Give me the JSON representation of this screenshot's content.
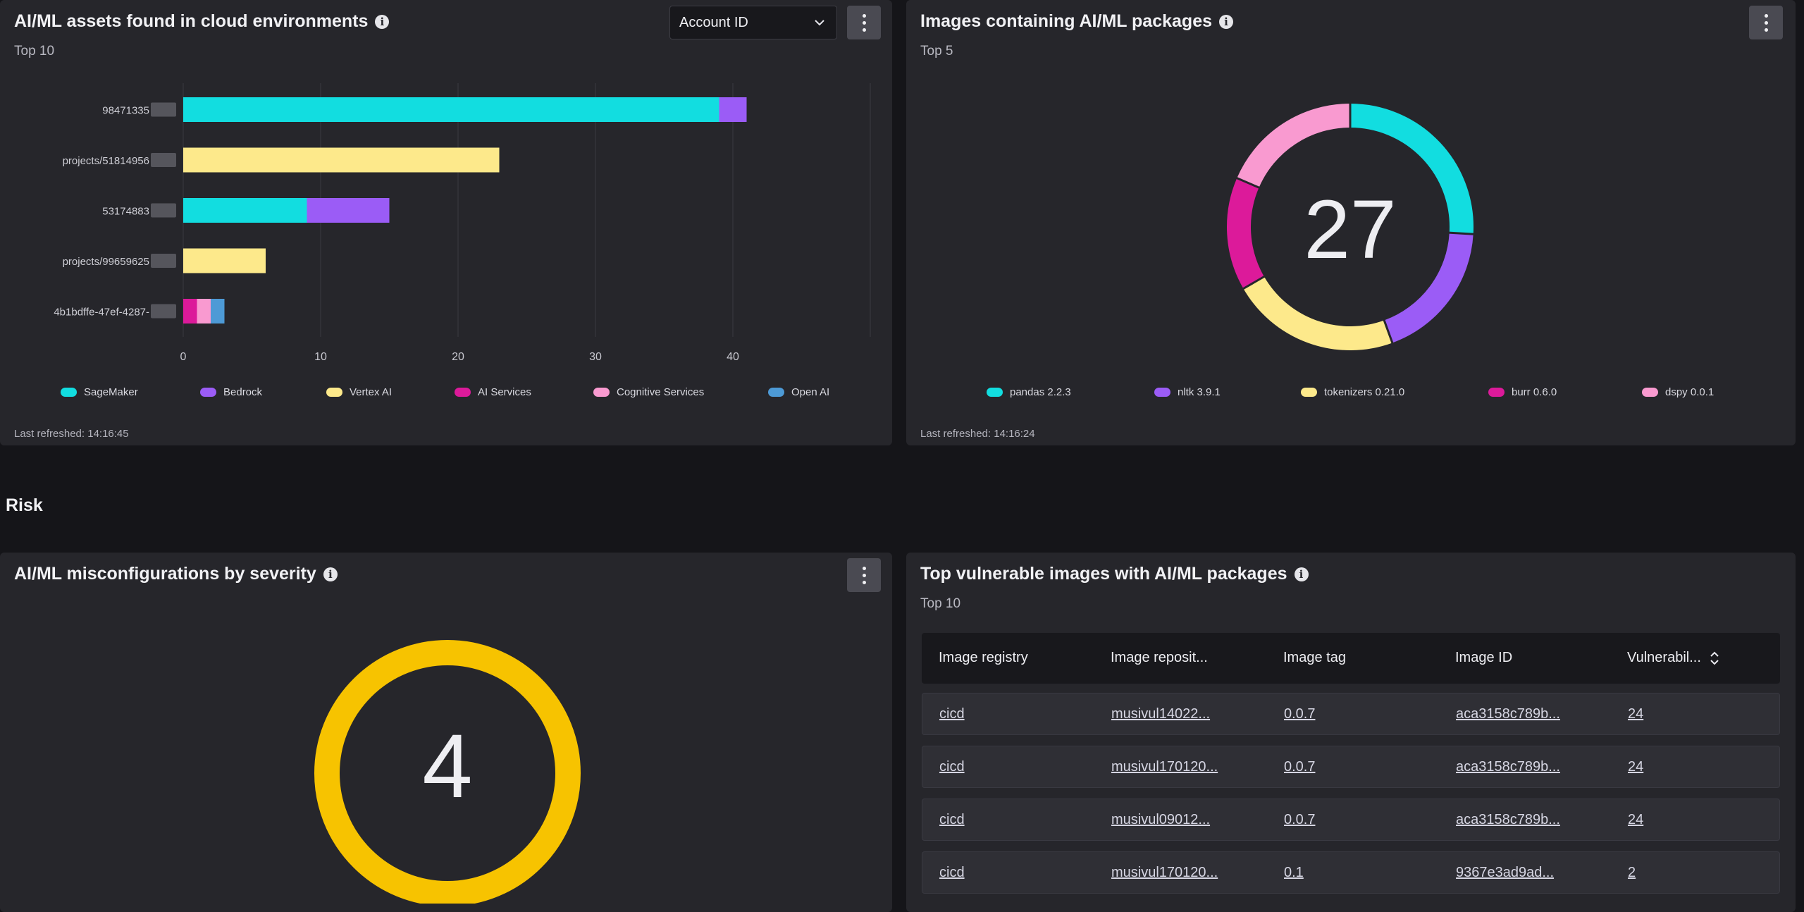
{
  "assets_card": {
    "title": "AI/ML assets found in cloud environments",
    "subtitle": "Top 10",
    "dropdown_value": "Account ID",
    "last_refreshed": "Last refreshed: 14:16:45"
  },
  "images_card": {
    "title": "Images containing AI/ML packages",
    "subtitle": "Top 5",
    "last_refreshed": "Last refreshed: 14:16:24"
  },
  "section": {
    "risk_title": "Risk"
  },
  "misconfig_card": {
    "title": "AI/ML misconfigurations by severity",
    "total": "4",
    "ring_color": "#f7c300"
  },
  "vuln_card": {
    "title": "Top vulnerable images with AI/ML packages",
    "subtitle": "Top 10",
    "columns": [
      "Image registry",
      "Image reposit...",
      "Image tag",
      "Image ID",
      "Vulnerabil..."
    ],
    "rows": [
      [
        "cicd",
        "musivul14022...",
        "0.0.7",
        "aca3158c789b...",
        "24"
      ],
      [
        "cicd",
        "musivul170120...",
        "0.0.7",
        "aca3158c789b...",
        "24"
      ],
      [
        "cicd",
        "musivul09012...",
        "0.0.7",
        "aca3158c789b...",
        "24"
      ],
      [
        "cicd",
        "musivul170120...",
        "0.1",
        "9367e3ad9ad...",
        "2"
      ]
    ]
  },
  "chart_data": [
    {
      "type": "bar",
      "orientation": "horizontal",
      "stacked": true,
      "categories": [
        "98471335",
        "projects/51814956",
        "53174883",
        "projects/99659625",
        "4b1bdffe-47ef-4287-"
      ],
      "series": [
        {
          "name": "SageMaker",
          "color": "#12dde0",
          "values": [
            39,
            0,
            9,
            0,
            0
          ]
        },
        {
          "name": "Bedrock",
          "color": "#9b5cf6",
          "values": [
            2,
            0,
            6,
            0,
            0
          ]
        },
        {
          "name": "Vertex AI",
          "color": "#fde98b",
          "values": [
            0,
            23,
            0,
            6,
            0
          ]
        },
        {
          "name": "AI Services",
          "color": "#dc1a9a",
          "values": [
            0,
            0,
            0,
            0,
            1
          ]
        },
        {
          "name": "Cognitive Services",
          "color": "#f99ad0",
          "values": [
            0,
            0,
            0,
            0,
            1
          ]
        },
        {
          "name": "Open AI",
          "color": "#4d9ad6",
          "values": [
            0,
            0,
            0,
            0,
            1
          ]
        }
      ],
      "xticks": [
        "0",
        "10",
        "20",
        "30",
        "40"
      ],
      "xlim": [
        0,
        50
      ],
      "grid": true,
      "legend_position": "bottom"
    },
    {
      "type": "pie",
      "donut": true,
      "center_label": "27",
      "slices": [
        {
          "name": "pandas 2.2.3",
          "color": "#12dde0",
          "value": 7
        },
        {
          "name": "nltk 3.9.1",
          "color": "#9b5cf6",
          "value": 5
        },
        {
          "name": "tokenizers 0.21.0",
          "color": "#fde98b",
          "value": 6
        },
        {
          "name": "burr 0.6.0",
          "color": "#dc1a9a",
          "value": 4
        },
        {
          "name": "dspy 0.0.1",
          "color": "#f99ad0",
          "value": 5
        }
      ],
      "legend_position": "bottom"
    }
  ]
}
